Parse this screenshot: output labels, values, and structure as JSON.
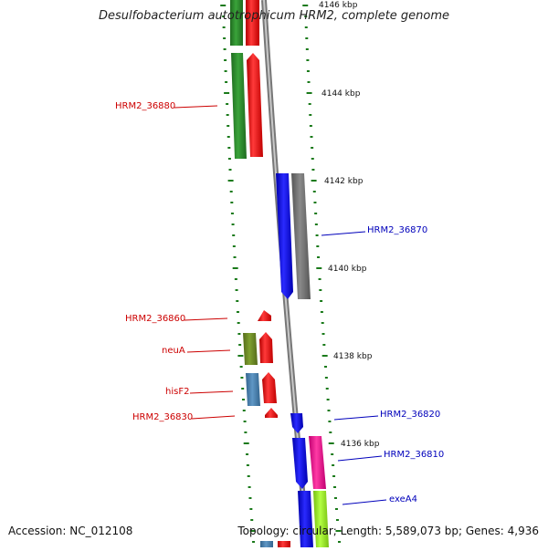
{
  "title": "Desulfobacterium autotrophicum HRM2, complete genome",
  "footer": {
    "accession": "Accession: NC_012108",
    "topology": "Topology: circular; Length: 5,589,073 bp; Genes: 4,936"
  },
  "scale_labels": [
    "4146 kbp",
    "4144 kbp",
    "4142 kbp",
    "4140 kbp",
    "4138 kbp",
    "4136 kbp"
  ],
  "gene_labels": {
    "left": [
      "HRM2_36880",
      "HRM2_36860",
      "neuA",
      "hisF2",
      "HRM2_36830"
    ],
    "right": [
      "HRM2_36870",
      "HRM2_36820",
      "HRM2_36810",
      "exeA4"
    ]
  },
  "colors": {
    "red": "#e81010",
    "green": "#2e8b2e",
    "blue": "#1515ee",
    "gray": "#777777",
    "olive": "#6b8e23",
    "steelblue": "#4682b4",
    "pink": "#ee1490",
    "lime": "#99ee22",
    "tick_green": "#1a7a1a",
    "left_label": "#cc0000",
    "right_label": "#0000bb"
  }
}
